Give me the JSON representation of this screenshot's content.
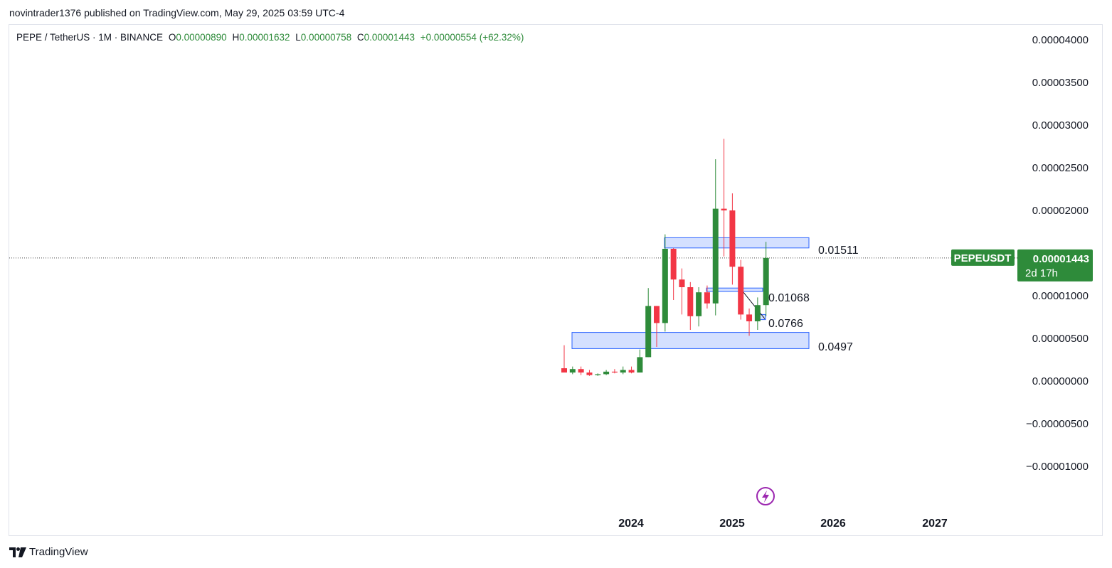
{
  "header": {
    "published": "novintrader1376 published on TradingView.com, May 29, 2025 03:59 UTC-4"
  },
  "legend": {
    "symbol": "PEPE / TetherUS · 1M · BINANCE",
    "o_label": "O",
    "o_value": "0.00000890",
    "h_label": "H",
    "h_value": "0.00001632",
    "l_label": "L",
    "l_value": "0.00000758",
    "c_label": "C",
    "c_value": "0.00001443",
    "change": "+0.00000554 (+62.32%)"
  },
  "price_tag": {
    "symbol": "PEPEUSDT",
    "price": "0.00001443",
    "countdown": "2d 17h",
    "color": "#2e8b3a"
  },
  "footer": {
    "brand": "TradingView"
  },
  "chart_data": {
    "type": "candlestick",
    "y_ticks": [
      "0.00004000",
      "0.00003500",
      "0.00003000",
      "0.00002500",
      "0.00002000",
      "0.00001500",
      "0.00001000",
      "0.00000500",
      "0.00000000",
      "−0.00000500",
      "−0.00001000"
    ],
    "y_values": [
      4e-05,
      3.5e-05,
      3e-05,
      2.5e-05,
      2e-05,
      1.5e-05,
      1e-05,
      5e-06,
      0,
      -5e-06,
      -1e-05
    ],
    "ylim": [
      -1.25e-05,
      4.15e-05
    ],
    "x_ticks": [
      "2024",
      "2025",
      "2026",
      "2027"
    ],
    "up_color": "#2e8b3a",
    "down_color": "#f23645",
    "zone_color": "#2962ff",
    "candles": [
      {
        "o": 1.5e-06,
        "h": 4.2e-06,
        "l": 1e-06,
        "c": 1e-06
      },
      {
        "o": 1e-06,
        "h": 1.7e-06,
        "l": 8e-07,
        "c": 1.4e-06
      },
      {
        "o": 1.4e-06,
        "h": 1.7e-06,
        "l": 7e-07,
        "c": 1e-06
      },
      {
        "o": 1e-06,
        "h": 1.3e-06,
        "l": 6e-07,
        "c": 7e-07
      },
      {
        "o": 7e-07,
        "h": 9e-07,
        "l": 6e-07,
        "c": 8e-07
      },
      {
        "o": 8e-07,
        "h": 1.3e-06,
        "l": 7e-07,
        "c": 1.1e-06
      },
      {
        "o": 1.1e-06,
        "h": 1.4e-06,
        "l": 9e-07,
        "c": 1e-06
      },
      {
        "o": 1e-06,
        "h": 1.7e-06,
        "l": 8e-07,
        "c": 1.3e-06
      },
      {
        "o": 1.3e-06,
        "h": 1.7e-06,
        "l": 9e-07,
        "c": 1e-06
      },
      {
        "o": 1e-06,
        "h": 3.7e-06,
        "l": 1e-06,
        "c": 2.8e-06
      },
      {
        "o": 2.8e-06,
        "h": 1.09e-05,
        "l": 2.8e-06,
        "c": 8.8e-06
      },
      {
        "o": 8.8e-06,
        "h": 8.8e-06,
        "l": 4e-06,
        "c": 6.8e-06
      },
      {
        "o": 6.8e-06,
        "h": 1.72e-05,
        "l": 5.8e-06,
        "c": 1.55e-05
      },
      {
        "o": 1.55e-05,
        "h": 1.56e-05,
        "l": 9.5e-06,
        "c": 1.19e-05
      },
      {
        "o": 1.19e-05,
        "h": 1.32e-05,
        "l": 7.8e-06,
        "c": 1.1e-05
      },
      {
        "o": 1.1e-05,
        "h": 1.16e-05,
        "l": 6e-06,
        "c": 7.6e-06
      },
      {
        "o": 7.6e-06,
        "h": 1.1e-05,
        "l": 6.4e-06,
        "c": 1.04e-05
      },
      {
        "o": 1.04e-05,
        "h": 1.12e-05,
        "l": 8.5e-06,
        "c": 9.1e-06
      },
      {
        "o": 9.1e-06,
        "h": 2.6e-05,
        "l": 7.7e-06,
        "c": 2.02e-05
      },
      {
        "o": 2.02e-05,
        "h": 2.84e-05,
        "l": 1.46e-05,
        "c": 2e-05
      },
      {
        "o": 2e-05,
        "h": 2.2e-05,
        "l": 1.13e-05,
        "c": 1.34e-05
      },
      {
        "o": 1.34e-05,
        "h": 1.42e-05,
        "l": 7.2e-06,
        "c": 7.8e-06
      },
      {
        "o": 7.8e-06,
        "h": 8.5e-06,
        "l": 5.3e-06,
        "c": 7e-06
      },
      {
        "o": 7e-06,
        "h": 9.8e-06,
        "l": 6e-06,
        "c": 8.9e-06
      },
      {
        "o": 8.9e-06,
        "h": 1.632e-05,
        "l": 7.58e-06,
        "c": 1.443e-05
      }
    ],
    "zones": [
      {
        "top": 1.68e-05,
        "bottom": 1.56e-05,
        "label": "0.01511"
      },
      {
        "top": 1.09e-05,
        "bottom": 1.05e-05,
        "label": "0.01068"
      },
      {
        "top": 7.8e-06,
        "bottom": 7.2e-06,
        "label": "0.0766"
      },
      {
        "top": 5.7e-06,
        "bottom": 3.8e-06,
        "label": "0.0497"
      }
    ],
    "last_price": 1.443e-05
  }
}
